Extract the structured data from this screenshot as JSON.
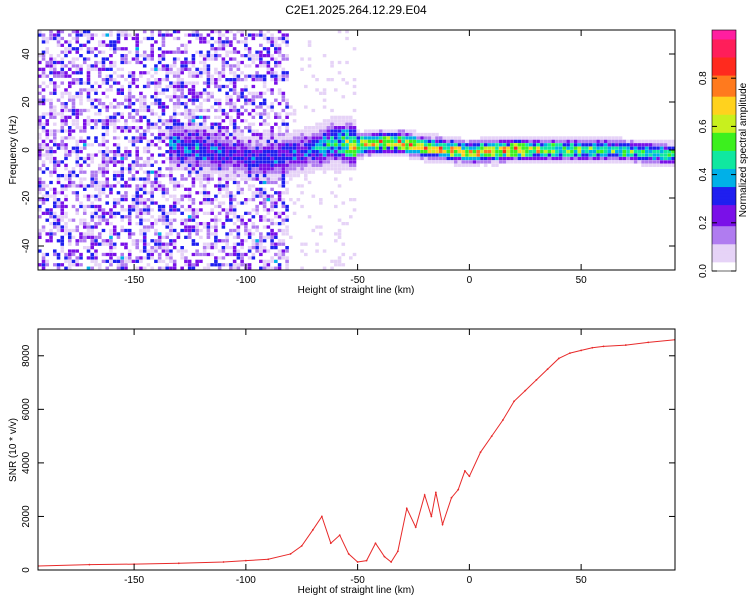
{
  "title": "C2E1.2025.264.12.29.E04",
  "colors": {
    "frame": "#000000",
    "snr_line": "#e82a2a",
    "colormap": [
      "#ffffff",
      "#e6d3f7",
      "#b07cf0",
      "#7a10e8",
      "#1f1ff0",
      "#00b0e8",
      "#10e8a0",
      "#3cf01e",
      "#c8f01e",
      "#ffd21e",
      "#ff7a1e",
      "#ff2a1e",
      "#ff1e5a",
      "#ff1ea0"
    ]
  },
  "chart_data": [
    {
      "type": "heatmap",
      "title": "C2E1.2025.264.12.29.E04",
      "xlabel": "Height of straight line (km)",
      "ylabel": "Frequency (Hz)",
      "xlim": [
        -193,
        92
      ],
      "ylim": [
        -50,
        50
      ],
      "xticks": [
        -150,
        -100,
        -50,
        0,
        50
      ],
      "yticks": [
        -40,
        -20,
        0,
        20,
        40
      ],
      "colorbar": {
        "label": "Normalized spectral amplitude",
        "range": [
          0,
          1
        ],
        "ticks": [
          0,
          0.2,
          0.4,
          0.6,
          0.8
        ]
      },
      "signal_track": {
        "x": [
          -130,
          -120,
          -110,
          -100,
          -90,
          -80,
          -70,
          -60,
          -50,
          -40,
          -30,
          -20,
          -10,
          0,
          20,
          40,
          60,
          80,
          92
        ],
        "freq": [
          2,
          0,
          -2,
          -3,
          -4,
          -2,
          0,
          3,
          2,
          3,
          3,
          1,
          0,
          -1,
          0,
          0,
          0,
          -1,
          -2
        ],
        "amplitude": [
          0.35,
          0.4,
          0.35,
          0.3,
          0.35,
          0.35,
          0.4,
          0.5,
          0.75,
          0.85,
          0.8,
          0.75,
          0.8,
          0.8,
          0.8,
          0.65,
          0.6,
          0.55,
          0.55
        ]
      }
    },
    {
      "type": "line",
      "xlabel": "Height of straight line (km)",
      "ylabel": "SNR (10 * v/v)",
      "xlim": [
        -193,
        92
      ],
      "ylim": [
        0,
        9000
      ],
      "xticks": [
        -150,
        -100,
        -50,
        0,
        50
      ],
      "yticks": [
        0,
        2000,
        4000,
        6000,
        8000
      ],
      "series": [
        {
          "name": "SNR",
          "x": [
            -193,
            -170,
            -150,
            -130,
            -110,
            -100,
            -90,
            -80,
            -75,
            -70,
            -66,
            -62,
            -58,
            -54,
            -50,
            -46,
            -42,
            -38,
            -35,
            -32,
            -28,
            -24,
            -20,
            -17,
            -15,
            -12,
            -8,
            -5,
            -2,
            0,
            5,
            10,
            15,
            20,
            25,
            30,
            35,
            40,
            45,
            50,
            55,
            60,
            70,
            80,
            92
          ],
          "y": [
            150,
            200,
            220,
            250,
            300,
            350,
            400,
            600,
            900,
            1500,
            2000,
            1000,
            1300,
            600,
            300,
            350,
            1000,
            500,
            300,
            700,
            2300,
            1600,
            2800,
            2000,
            2900,
            1700,
            2700,
            3000,
            3700,
            3500,
            4400,
            5000,
            5600,
            6300,
            6700,
            7100,
            7500,
            7900,
            8100,
            8200,
            8300,
            8350,
            8400,
            8500,
            8600
          ]
        }
      ]
    }
  ]
}
